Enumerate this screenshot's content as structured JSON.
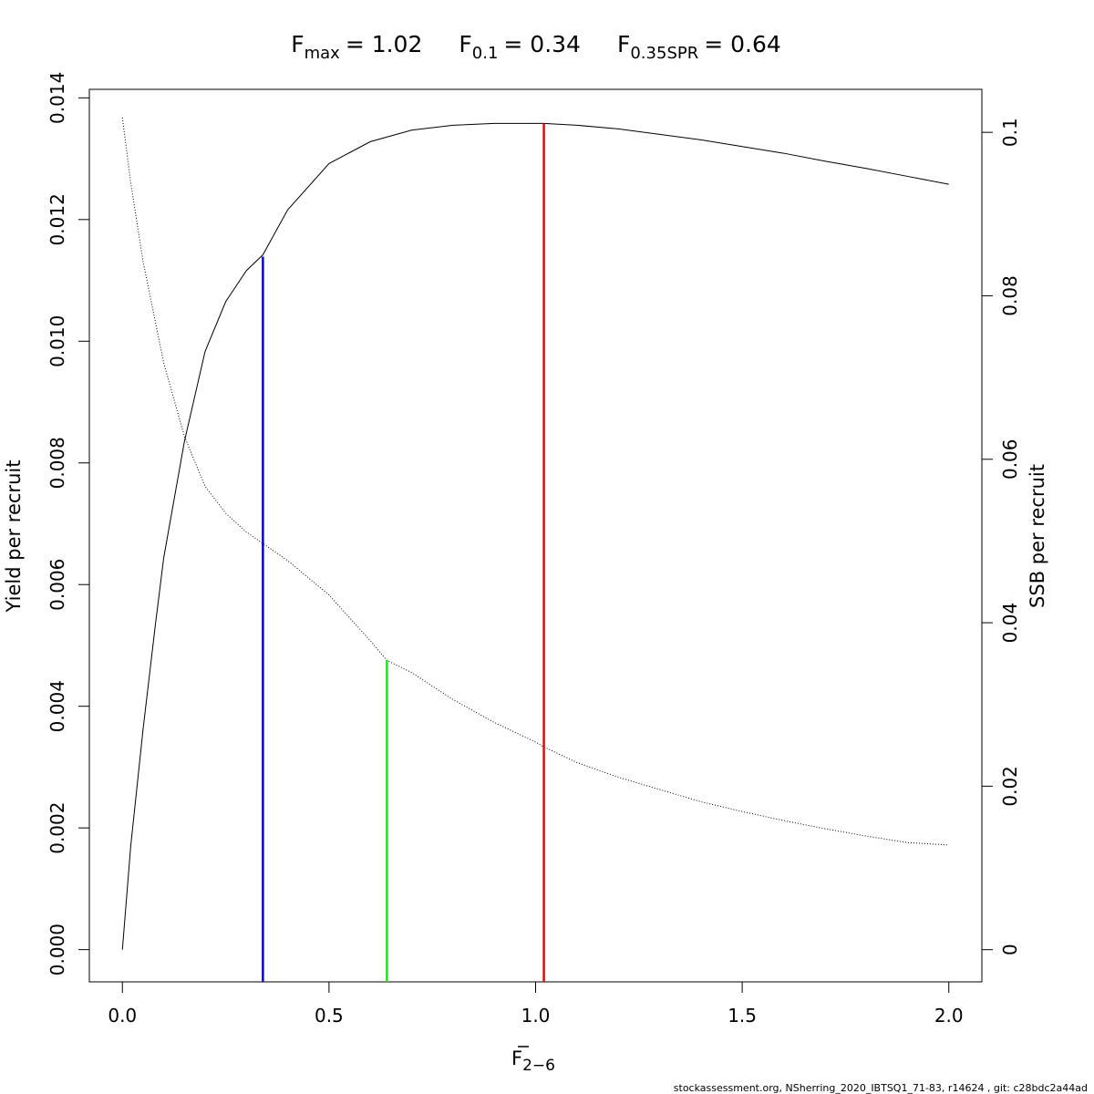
{
  "chart_data": {
    "type": "line",
    "title": {
      "fmax": {
        "base": "F",
        "sub": "max",
        "value": "= 1.02"
      },
      "f01": {
        "base": "F",
        "sub": "0.1",
        "value": "= 0.34"
      },
      "fspr": {
        "base": "F",
        "sub": "0.35SPR",
        "value": "= 0.64"
      }
    },
    "xlabel": {
      "base": "F",
      "sub": "2−6"
    },
    "ylabel_left": "Yield per recruit",
    "ylabel_right": "SSB per recruit",
    "xlim": [
      -0.08,
      2.08
    ],
    "ylim_left": [
      -0.00053,
      0.01414
    ],
    "ylim_right": [
      -0.00394,
      0.10526
    ],
    "x_ticks": [
      {
        "value": 0.0,
        "label": "0.0"
      },
      {
        "value": 0.5,
        "label": "0.5"
      },
      {
        "value": 1.0,
        "label": "1.0"
      },
      {
        "value": 1.5,
        "label": "1.5"
      },
      {
        "value": 2.0,
        "label": "2.0"
      }
    ],
    "y_left_ticks": [
      {
        "value": 0.0,
        "label": "0.000"
      },
      {
        "value": 0.002,
        "label": "0.002"
      },
      {
        "value": 0.004,
        "label": "0.004"
      },
      {
        "value": 0.006,
        "label": "0.006"
      },
      {
        "value": 0.008,
        "label": "0.008"
      },
      {
        "value": 0.01,
        "label": "0.010"
      },
      {
        "value": 0.012,
        "label": "0.012"
      },
      {
        "value": 0.014,
        "label": "0.014"
      }
    ],
    "y_right_ticks": [
      {
        "value": 0.0,
        "label": "0"
      },
      {
        "value": 0.02,
        "label": "0.02"
      },
      {
        "value": 0.04,
        "label": "0.04"
      },
      {
        "value": 0.06,
        "label": "0.06"
      },
      {
        "value": 0.08,
        "label": "0.08"
      },
      {
        "value": 0.1,
        "label": "0.1"
      }
    ],
    "series": [
      {
        "style": "solid",
        "axis": "left",
        "color": "#000000",
        "x": [
          0.0,
          0.02,
          0.05,
          0.08,
          0.1,
          0.15,
          0.2,
          0.25,
          0.3,
          0.34,
          0.4,
          0.5,
          0.6,
          0.7,
          0.8,
          0.9,
          1.02,
          1.1,
          1.2,
          1.3,
          1.4,
          1.5,
          1.6,
          1.7,
          1.8,
          1.9,
          2.0
        ],
        "y": [
          0.0,
          0.00169,
          0.00362,
          0.00535,
          0.00644,
          0.00835,
          0.00983,
          0.01065,
          0.01116,
          0.01142,
          0.01216,
          0.01292,
          0.01328,
          0.01347,
          0.01355,
          0.01358,
          0.01358,
          0.01355,
          0.01349,
          0.0134,
          0.01331,
          0.0132,
          0.01309,
          0.01296,
          0.01284,
          0.01271,
          0.01258
        ]
      },
      {
        "style": "dotted",
        "axis": "right",
        "color": "#000000",
        "x": [
          0.0,
          0.02,
          0.05,
          0.1,
          0.15,
          0.2,
          0.25,
          0.3,
          0.34,
          0.4,
          0.5,
          0.6,
          0.64,
          0.7,
          0.8,
          0.9,
          1.0,
          1.02,
          1.1,
          1.2,
          1.3,
          1.4,
          1.5,
          1.6,
          1.7,
          1.8,
          1.9,
          2.0
        ],
        "y": [
          0.1018,
          0.0939,
          0.0842,
          0.0718,
          0.0628,
          0.0567,
          0.0534,
          0.0511,
          0.0497,
          0.0476,
          0.0434,
          0.0378,
          0.0354,
          0.0339,
          0.0306,
          0.0278,
          0.0254,
          0.0248,
          0.0229,
          0.0211,
          0.0196,
          0.0181,
          0.0169,
          0.0158,
          0.0148,
          0.0139,
          0.0131,
          0.0128
        ]
      }
    ],
    "reference_lines": [
      {
        "x": 0.34,
        "y_top": 0.01139,
        "axis": "left",
        "color": "#0000ff"
      },
      {
        "x": 0.64,
        "y_top": 0.0354,
        "axis": "right",
        "color": "#00ff00"
      },
      {
        "x": 1.02,
        "y_top": 0.01358,
        "axis": "left",
        "color": "#ff0000"
      }
    ]
  },
  "footer": "stockassessment.org, NSherring_2020_IBTSQ1_71-83, r14624 , git: c28bdc2a44ad"
}
